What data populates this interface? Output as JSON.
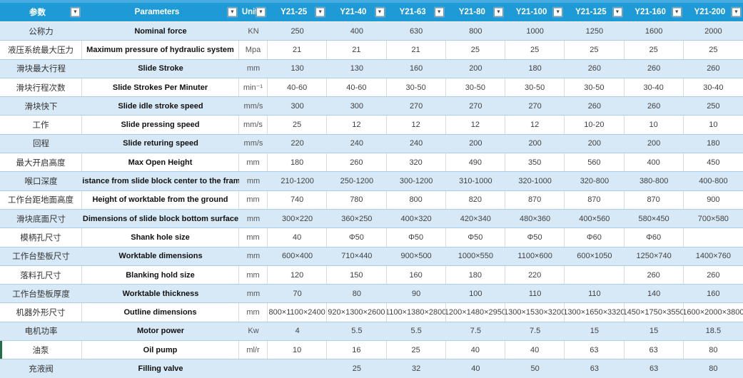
{
  "colors": {
    "header_bg": "#1e9bd7",
    "top_strip": "#47abdf",
    "band_blue": "#d7e9f7",
    "row_border": "#aacdea",
    "green_marker": "#1e7145"
  },
  "icons": {
    "filter_dropdown": "▼"
  },
  "table": {
    "columns": [
      {
        "key": "cn",
        "label": "参数"
      },
      {
        "key": "en",
        "label": "Parameters"
      },
      {
        "key": "unit",
        "label": "Unit"
      },
      {
        "key": "y21-25",
        "label": "Y21-25"
      },
      {
        "key": "y21-40",
        "label": "Y21-40"
      },
      {
        "key": "y21-63",
        "label": "Y21-63"
      },
      {
        "key": "y21-80",
        "label": "Y21-80"
      },
      {
        "key": "y21-100",
        "label": "Y21-100"
      },
      {
        "key": "y21-125",
        "label": "Y21-125"
      },
      {
        "key": "y21-160",
        "label": "Y21-160"
      },
      {
        "key": "y21-200",
        "label": "Y21-200"
      }
    ],
    "rows": [
      {
        "cn": "公称力",
        "en": "Nominal force",
        "unit": "KN",
        "values": [
          "250",
          "400",
          "630",
          "800",
          "1000",
          "1250",
          "1600",
          "2000"
        ]
      },
      {
        "cn": "液压系统最大压力",
        "en": "Maximum pressure of hydraulic system",
        "unit": "Mpa",
        "values": [
          "21",
          "21",
          "21",
          "25",
          "25",
          "25",
          "25",
          "25"
        ]
      },
      {
        "cn": "滑块最大行程",
        "en": "Slide Stroke",
        "unit": "mm",
        "values": [
          "130",
          "130",
          "160",
          "200",
          "180",
          "260",
          "260",
          "260"
        ]
      },
      {
        "cn": "滑块行程次数",
        "en": "Slide Strokes Per Minuter",
        "unit": "min⁻¹",
        "values": [
          "40-60",
          "40-60",
          "30-50",
          "30-50",
          "30-50",
          "30-50",
          "30-40",
          "30-40"
        ]
      },
      {
        "cn": "滑块快下",
        "en": "Slide idle stroke speed",
        "unit": "mm/s",
        "values": [
          "300",
          "300",
          "270",
          "270",
          "270",
          "260",
          "260",
          "250"
        ]
      },
      {
        "cn": "工作",
        "en": "Slide pressing speed",
        "unit": "mm/s",
        "values": [
          "25",
          "12",
          "12",
          "12",
          "12",
          "10-20",
          "10",
          "10"
        ]
      },
      {
        "cn": "回程",
        "en": "Slide returing speed",
        "unit": "mm/s",
        "values": [
          "220",
          "240",
          "240",
          "200",
          "200",
          "200",
          "200",
          "180"
        ]
      },
      {
        "cn": "最大开启高度",
        "en": "Max Open Height",
        "unit": "mm",
        "values": [
          "180",
          "260",
          "320",
          "490",
          "350",
          "560",
          "400",
          "450"
        ]
      },
      {
        "cn": "喉口深度",
        "en": "Distance from slide block center to the frame",
        "unit": "mm",
        "values": [
          "210-1200",
          "250-1200",
          "300-1200",
          "310-1000",
          "320-1000",
          "320-800",
          "380-800",
          "400-800"
        ]
      },
      {
        "cn": "工作台距地面高度",
        "en": "Height of worktable from the ground",
        "unit": "mm",
        "values": [
          "740",
          "780",
          "800",
          "820",
          "870",
          "870",
          "870",
          "900"
        ]
      },
      {
        "cn": "滑块底面尺寸",
        "en": "Dimensions of slide block bottom surface",
        "unit": "mm",
        "values": [
          "300×220",
          "360×250",
          "400×320",
          "420×340",
          "480×360",
          "400×560",
          "580×450",
          "700×580"
        ]
      },
      {
        "cn": "模柄孔尺寸",
        "en": "Shank hole size",
        "unit": "mm",
        "values": [
          "40",
          "Φ50",
          "Φ50",
          "Φ50",
          "Φ50",
          "Φ60",
          "Φ60",
          ""
        ]
      },
      {
        "cn": "工作台垫板尺寸",
        "en": "Worktable dimensions",
        "unit": "mm",
        "values": [
          "600×400",
          "710×440",
          "900×500",
          "1000×550",
          "1100×600",
          "600×1050",
          "1250×740",
          "1400×760"
        ]
      },
      {
        "cn": "落料孔尺寸",
        "en": "Blanking hold size",
        "unit": "mm",
        "values": [
          "120",
          "150",
          "160",
          "180",
          "220",
          "",
          "260",
          "260"
        ]
      },
      {
        "cn": "工作台垫板厚度",
        "en": "Worktable thickness",
        "unit": "mm",
        "values": [
          "70",
          "80",
          "90",
          "100",
          "110",
          "110",
          "140",
          "160"
        ]
      },
      {
        "cn": "机器外形尺寸",
        "en": "Outline dimensions",
        "unit": "mm",
        "values": [
          "800×1100×2400",
          "920×1300×2600",
          "1100×1380×2800",
          "1200×1480×2950",
          "1300×1530×3200",
          "1300×1650×3320",
          "1450×1750×3550",
          "1600×2000×3800"
        ]
      },
      {
        "cn": "电机功率",
        "en": "Motor power",
        "unit": "Kw",
        "values": [
          "4",
          "5.5",
          "5.5",
          "7.5",
          "7.5",
          "15",
          "15",
          "18.5"
        ]
      },
      {
        "cn": "油泵",
        "en": "Oil pump",
        "unit": "ml/r",
        "left_marker": true,
        "values": [
          "10",
          "16",
          "25",
          "40",
          "40",
          "63",
          "63",
          "80"
        ]
      },
      {
        "cn": "充液阀",
        "en": "Filling valve",
        "unit": "",
        "values": [
          "",
          "25",
          "32",
          "40",
          "50",
          "63",
          "63",
          "80"
        ]
      }
    ]
  }
}
